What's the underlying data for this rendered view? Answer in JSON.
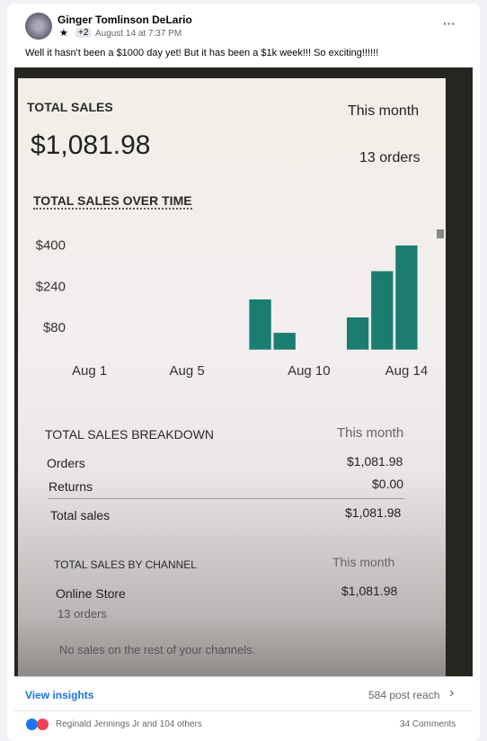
{
  "post": {
    "author": "Ginger Tomlinson DeLario",
    "badge": "+2",
    "timestamp": "August 14 at 7:37 PM",
    "text": "Well it hasn't been a $1000 day yet!  But it has been a $1k week!!!  So exciting!!!!!!",
    "insights_link": "View insights",
    "reach": "584 post reach",
    "reactions": "Reginald Jennings Jr and 104 others",
    "comments": "34 Comments"
  },
  "dashboard": {
    "title": "TOTAL SALES",
    "period": "This month",
    "total": "$1,081.98",
    "orders": "13 orders",
    "breakdown": {
      "title": "TOTAL SALES BREAKDOWN",
      "period": "This month",
      "rows": [
        [
          "Orders",
          "$1,081.98"
        ],
        [
          "Returns",
          "$0.00"
        ],
        [
          "Total sales",
          "$1,081.98"
        ]
      ]
    },
    "channel": {
      "title": "TOTAL SALES BY CHANNEL",
      "period": "This month",
      "name": "Online Store",
      "amount": "$1,081.98",
      "orders": "13 orders",
      "note": "No sales on the rest of your channels."
    }
  },
  "chart_data": {
    "type": "bar",
    "title": "TOTAL SALES OVER TIME",
    "categories": [
      "Aug 1",
      null,
      null,
      null,
      "Aug 5",
      null,
      null,
      null,
      null,
      "Aug 10",
      null,
      null,
      null,
      "Aug 14"
    ],
    "values": [
      0,
      0,
      0,
      0,
      0,
      0,
      0,
      190,
      60,
      0,
      0,
      120,
      300,
      400
    ],
    "color": "#1a7d70",
    "ylim": [
      0,
      420
    ],
    "yticks": [
      {
        "value": 80,
        "label": "$80"
      },
      {
        "value": 240,
        "label": "$240"
      },
      {
        "value": 400,
        "label": "$400"
      }
    ],
    "grid": false
  }
}
